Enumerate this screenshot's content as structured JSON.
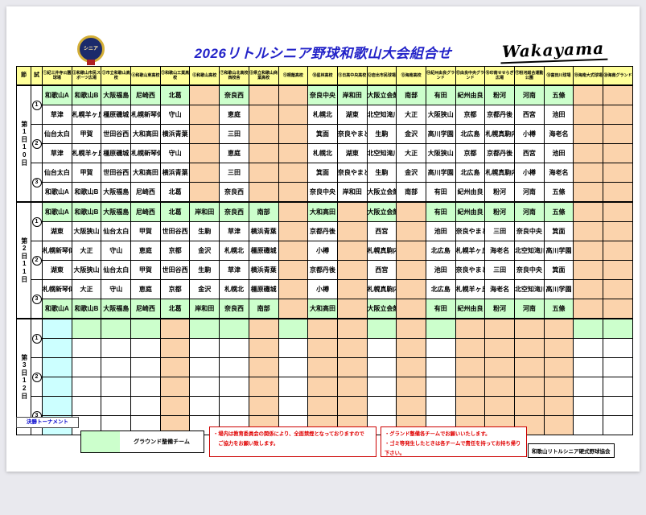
{
  "header": {
    "title": "2026リトルシニア野球和歌山大会組合せ",
    "brand": "Wakayama",
    "badge": "シニア"
  },
  "table": {
    "corner": [
      "節",
      "試"
    ],
    "venues": [
      "①紀三井寺公園球場",
      "②和歌山市民スポーツ広場",
      "③市立和歌山高校",
      "④和歌山東高校",
      "⑤和歌山工業高校",
      "⑥和歌山高校",
      "⑦和歌山北高校西校舎",
      "⑧県立和歌山商業高校",
      "⑨桐蔭高校",
      "⑩星林高校",
      "⑪日高中央高校",
      "⑫岩出市民球場",
      "⑬海南高校",
      "⑭紀州由良グランド",
      "⑮由良中央グランド",
      "⑯印南せせらぎ広場",
      "⑰粉河総合運動公園",
      "⑱富田川球場",
      "⑲海南大式球場",
      "⑳海南グランド"
    ],
    "blocks": [
      {
        "day": "第1日",
        "date": "10日",
        "games": [
          "1",
          "2",
          "3"
        ],
        "orange_cols": [
          6,
          8,
          9,
          19,
          20
        ],
        "cyan_col": 0,
        "rows": [
          {
            "green": true,
            "teams": [
              "和歌山A",
              "和歌山B",
              "大阪福島",
              "尼崎西",
              "北葛",
              "",
              "奈良西",
              "",
              "",
              "奈良中央",
              "岸和田",
              "大阪立会館",
              "南部",
              "有田",
              "紀州由良",
              "粉河",
              "河南",
              "五條",
              "",
              ""
            ]
          },
          {
            "green": false,
            "teams": [
              "草津",
              "札幌羊ヶ丘",
              "橿原磯城",
              "札幌新琴似",
              "守山",
              "",
              "恵庭",
              "",
              "",
              "札幌北",
              "湖東",
              "北空知滝川",
              "大正",
              "大阪狭山",
              "京都",
              "京都丹後",
              "西宮",
              "池田",
              "",
              ""
            ]
          },
          {
            "green": false,
            "teams": [
              "仙台太白",
              "甲賀",
              "世田谷西",
              "大和高田",
              "横浜青葉",
              "",
              "三田",
              "",
              "",
              "箕面",
              "奈良やまと",
              "生駒",
              "金沢",
              "高川学園",
              "北広島",
              "札幌真駒内",
              "小樽",
              "海老名",
              "",
              ""
            ]
          },
          {
            "green": false,
            "teams": [
              "草津",
              "札幌羊ヶ丘",
              "橿原磯城",
              "札幌新琴似",
              "守山",
              "",
              "恵庭",
              "",
              "",
              "札幌北",
              "湖東",
              "北空知滝川",
              "大正",
              "大阪狭山",
              "京都",
              "京都丹後",
              "西宮",
              "池田",
              "",
              ""
            ]
          },
          {
            "green": false,
            "teams": [
              "仙台太白",
              "甲賀",
              "世田谷西",
              "大和高田",
              "横浜青葉",
              "",
              "三田",
              "",
              "",
              "箕面",
              "奈良やまと",
              "生駒",
              "金沢",
              "高川学園",
              "北広島",
              "札幌真駒内",
              "小樽",
              "海老名",
              "",
              ""
            ]
          },
          {
            "green": false,
            "teams": [
              "和歌山A",
              "和歌山B",
              "大阪福島",
              "尼崎西",
              "北葛",
              "",
              "奈良西",
              "",
              "",
              "奈良中央",
              "岸和田",
              "大阪立会館",
              "南部",
              "有田",
              "紀州由良",
              "粉河",
              "河南",
              "五條",
              "",
              ""
            ]
          }
        ]
      },
      {
        "day": "第2日",
        "date": "11日",
        "games": [
          "1",
          "2",
          "3"
        ],
        "orange_cols": [
          9,
          11,
          13,
          19,
          20
        ],
        "cyan_col": 0,
        "rows": [
          {
            "green": true,
            "teams": [
              "和歌山A",
              "和歌山B",
              "大阪福島",
              "尼崎西",
              "北葛",
              "岸和田",
              "奈良西",
              "南部",
              "",
              "大和高田",
              "",
              "大阪立会館",
              "",
              "有田",
              "紀州由良",
              "粉河",
              "河南",
              "五條",
              "",
              ""
            ]
          },
          {
            "green": false,
            "teams": [
              "湖東",
              "大阪狭山",
              "仙台太白",
              "甲賀",
              "世田谷西",
              "生駒",
              "草津",
              "横浜青葉",
              "",
              "京都丹後",
              "",
              "西宮",
              "",
              "池田",
              "奈良やまと",
              "三田",
              "奈良中央",
              "箕面",
              "",
              ""
            ]
          },
          {
            "green": false,
            "teams": [
              "札幌新琴似",
              "大正",
              "守山",
              "恵庭",
              "京都",
              "金沢",
              "札幌北",
              "橿原磯城",
              "",
              "小樽",
              "",
              "札幌真駒内",
              "",
              "北広島",
              "札幌羊ヶ丘",
              "海老名",
              "北空知滝川",
              "高川学園",
              "",
              ""
            ]
          },
          {
            "green": false,
            "teams": [
              "湖東",
              "大阪狭山",
              "仙台太白",
              "甲賀",
              "世田谷西",
              "生駒",
              "草津",
              "横浜青葉",
              "",
              "京都丹後",
              "",
              "西宮",
              "",
              "池田",
              "奈良やまと",
              "三田",
              "奈良中央",
              "箕面",
              "",
              ""
            ]
          },
          {
            "green": false,
            "teams": [
              "札幌新琴似",
              "大正",
              "守山",
              "恵庭",
              "京都",
              "金沢",
              "札幌北",
              "橿原磯城",
              "",
              "小樽",
              "",
              "札幌真駒内",
              "",
              "北広島",
              "札幌羊ヶ丘",
              "海老名",
              "北空知滝川",
              "高川学園",
              "",
              ""
            ]
          },
          {
            "green": true,
            "teams": [
              "和歌山A",
              "和歌山B",
              "大阪福島",
              "尼崎西",
              "北葛",
              "岸和田",
              "奈良西",
              "南部",
              "",
              "大和高田",
              "",
              "大阪立会館",
              "",
              "有田",
              "紀州由良",
              "粉河",
              "河南",
              "五條",
              "",
              ""
            ]
          }
        ]
      },
      {
        "day": "第3日",
        "date": "12日",
        "games": [
          "1",
          "2",
          "3"
        ],
        "orange_cols": [
          5,
          8,
          10,
          11,
          13,
          15,
          16,
          17,
          18
        ],
        "cyan_col": 1,
        "rows": [
          {
            "green": true,
            "teams": [
              "",
              "",
              "",
              "",
              "",
              "",
              "",
              "",
              "",
              "",
              "",
              "",
              "",
              "",
              "",
              "",
              "",
              "",
              "",
              ""
            ]
          },
          {
            "green": false,
            "teams": [
              "",
              "",
              "",
              "",
              "",
              "",
              "",
              "",
              "",
              "",
              "",
              "",
              "",
              "",
              "",
              "",
              "",
              "",
              "",
              ""
            ]
          },
          {
            "green": false,
            "teams": [
              "",
              "",
              "",
              "",
              "",
              "",
              "",
              "",
              "",
              "",
              "",
              "",
              "",
              "",
              "",
              "",
              "",
              "",
              "",
              ""
            ]
          },
          {
            "green": false,
            "teams": [
              "",
              "",
              "",
              "",
              "",
              "",
              "",
              "",
              "",
              "",
              "",
              "",
              "",
              "",
              "",
              "",
              "",
              "",
              "",
              ""
            ]
          },
          {
            "green": false,
            "teams": [
              "",
              "",
              "",
              "",
              "",
              "",
              "",
              "",
              "",
              "",
              "",
              "",
              "",
              "",
              "",
              "",
              "",
              "",
              "",
              ""
            ]
          },
          {
            "green": false,
            "teams": [
              "",
              "",
              "",
              "",
              "",
              "",
              "",
              "",
              "",
              "",
              "",
              "",
              "",
              "",
              "",
              "",
              "",
              "",
              "",
              ""
            ]
          }
        ]
      }
    ]
  },
  "footer": {
    "final_tournament": "決勝トーナメント",
    "legend_label": "グラウンド整備チーム",
    "note_smoking_1": "・場内は教育委員会の関係により、全面禁煙となっておりますので",
    "note_smoking_2": "　ご協力をお願い致します。",
    "note_ground_1": "・グランド整備各チームでお願いいたします。",
    "note_ground_2": "・ゴミ等発生したときは各チームで責任を持ってお持ち帰り下さい。",
    "association": "和歌山リトルシニア硬式野球協会"
  }
}
